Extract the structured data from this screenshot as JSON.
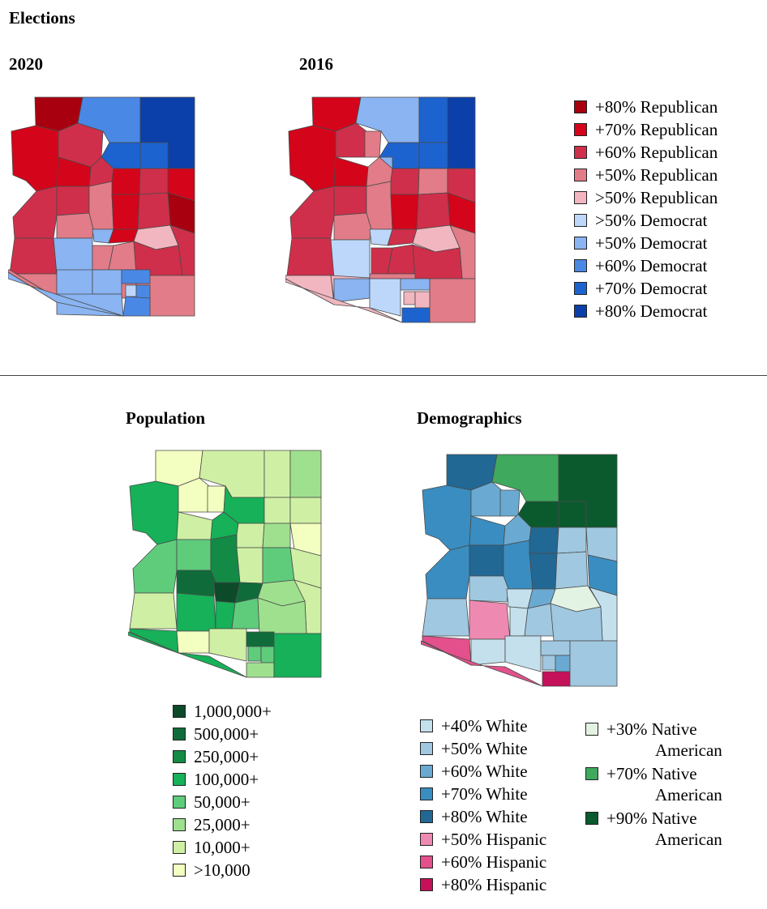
{
  "title": "Elections",
  "elections": {
    "maps": [
      {
        "label": "2020"
      },
      {
        "label": "2016"
      }
    ],
    "legend": [
      {
        "label": "+80% Republican",
        "color": "#a8000f"
      },
      {
        "label": "+70% Republican",
        "color": "#d4041a"
      },
      {
        "label": "+60% Republican",
        "color": "#cf2f4a"
      },
      {
        "label": "+50% Republican",
        "color": "#e27c88"
      },
      {
        "label": ">50% Republican",
        "color": "#f2b6c0"
      },
      {
        "label": ">50% Democrat",
        "color": "#bdd7fb"
      },
      {
        "label": "+50% Democrat",
        "color": "#8ab4f2"
      },
      {
        "label": "+60% Democrat",
        "color": "#4a88e6"
      },
      {
        "label": "+70% Democrat",
        "color": "#1d63cf"
      },
      {
        "label": "+80% Democrat",
        "color": "#0b40ab"
      }
    ]
  },
  "population": {
    "title": "Population",
    "legend": [
      {
        "label": "1,000,000+",
        "color": "#0c4a2a"
      },
      {
        "label": "500,000+",
        "color": "#0f6c3a"
      },
      {
        "label": "250,000+",
        "color": "#138a45"
      },
      {
        "label": "100,000+",
        "color": "#16b158"
      },
      {
        "label": "50,000+",
        "color": "#5fcc7c"
      },
      {
        "label": "25,000+",
        "color": "#9fe08e"
      },
      {
        "label": "10,000+",
        "color": "#cff0a4"
      },
      {
        "label": ">10,000",
        "color": "#f3ffc0"
      }
    ]
  },
  "demographics": {
    "title": "Demographics",
    "legend_left": [
      {
        "label": "+40% White",
        "color": "#c4e0ec"
      },
      {
        "label": "+50% White",
        "color": "#a0c8e0"
      },
      {
        "label": "+60% White",
        "color": "#6aaad2"
      },
      {
        "label": "+70% White",
        "color": "#3a8dc0"
      },
      {
        "label": "+80% White",
        "color": "#216894"
      },
      {
        "label": "+50% Hispanic",
        "color": "#ee8ab2"
      },
      {
        "label": "+60% Hispanic",
        "color": "#e4508c"
      },
      {
        "label": "+80% Hispanic",
        "color": "#c5115a"
      }
    ],
    "legend_right": [
      {
        "label": "+30% Native",
        "label2": "American",
        "color": "#e3f3e3"
      },
      {
        "label": "+70% Native",
        "label2": "American",
        "color": "#3fa95e"
      },
      {
        "label": "+90% Native",
        "label2": "American",
        "color": "#0a5a2e"
      }
    ]
  }
}
